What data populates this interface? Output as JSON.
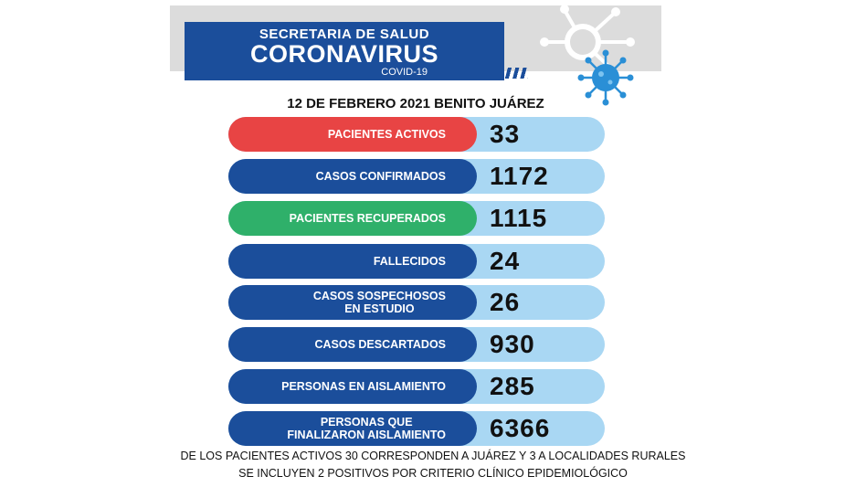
{
  "header": {
    "line1": "SECRETARIA DE SALUD",
    "line2": "CORONAVIRUS",
    "line3": "COVID-19",
    "date_location": "12 DE FEBRERO 2021 BENITO JUÁREZ"
  },
  "colors": {
    "primary": "#1b4e9b",
    "active": "#e84444",
    "recovered": "#2fb06a",
    "value_bg": "#a9d7f3"
  },
  "rows": [
    {
      "label": "PACIENTES ACTIVOS",
      "value": "33"
    },
    {
      "label": "CASOS CONFIRMADOS",
      "value": "1172"
    },
    {
      "label": "PACIENTES RECUPERADOS",
      "value": "1115"
    },
    {
      "label": "FALLECIDOS",
      "value": "24"
    },
    {
      "label_l1": "CASOS SOSPECHOSOS",
      "label_l2": "EN ESTUDIO",
      "value": "26"
    },
    {
      "label": "CASOS DESCARTADOS",
      "value": "930"
    },
    {
      "label": "PERSONAS EN AISLAMIENTO",
      "value": "285"
    },
    {
      "label_l1": "PERSONAS QUE",
      "label_l2": "FINALIZARON AISLAMIENTO",
      "value": "6366"
    }
  ],
  "footer": {
    "line1": "DE LOS PACIENTES ACTIVOS 30 CORRESPONDEN A JUÁREZ Y 3 A LOCALIDADES RURALES",
    "line2": "SE INCLUYEN 2 POSITIVOS  POR  CRITERIO CLÍNICO EPIDEMIOLÓGICO"
  }
}
